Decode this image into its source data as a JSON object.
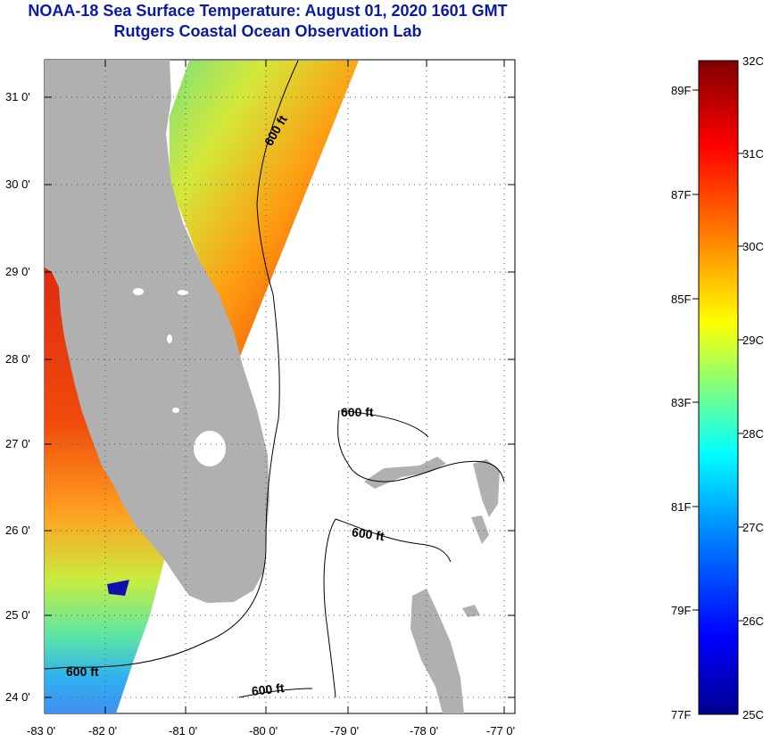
{
  "header": {
    "title": "NOAA-18 Sea Surface Temperature:  August 01, 2020 1601 GMT",
    "subtitle": "Rutgers Coastal Ocean Observation Lab"
  },
  "map": {
    "lat_ticks": [
      "31 0'",
      "30 0'",
      "29 0'",
      "28 0'",
      "27 0'",
      "26 0'",
      "25 0'",
      "24 0'"
    ],
    "lon_ticks": [
      "-83 0'",
      "-82 0'",
      "-81 0'",
      "-80 0'",
      "-79 0'",
      "-78 0'",
      "-77 0'"
    ],
    "contour_labels": [
      "600 ft",
      "600 ft",
      "600 ft",
      "600 ft",
      "600 ft"
    ],
    "land_color": "#b0b0b0"
  },
  "colorbar": {
    "celsius_labels": [
      "32C",
      "31C",
      "30C",
      "29C",
      "28C",
      "27C",
      "26C",
      "25C"
    ],
    "fahrenheit_labels": [
      "89F",
      "87F",
      "85F",
      "83F",
      "81F",
      "79F",
      "77F"
    ],
    "colors": [
      "#00008f",
      "#0000ff",
      "#0080ff",
      "#00ffff",
      "#80ff80",
      "#ffff00",
      "#ff8000",
      "#ff0000",
      "#800000"
    ]
  }
}
